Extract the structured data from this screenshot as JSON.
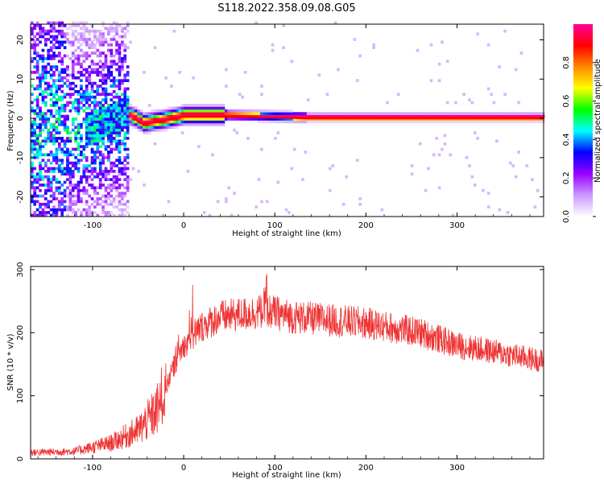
{
  "title": "S118.2022.358.09.08.G05",
  "chart_data": [
    {
      "type": "heatmap",
      "xlabel": "Height of straight line (km)",
      "ylabel": "Frequency (Hz)",
      "xlim": [
        -168,
        395
      ],
      "ylim": [
        -25,
        24
      ],
      "xticks": [
        -100,
        0,
        100,
        200,
        300
      ],
      "yticks": [
        -20,
        -10,
        0,
        10,
        20
      ],
      "colorbar": {
        "label": "Normalized spectral amplitude",
        "range": [
          0.0,
          1.0
        ],
        "ticks": [
          0.0,
          0.2,
          0.4,
          0.6,
          0.8
        ],
        "tick_labels": [
          "0.0",
          "0.2",
          "0.4",
          "0.6",
          "0.8"
        ],
        "colors": [
          "#ffffff",
          "#cc99ff",
          "#9900ff",
          "#0000ff",
          "#00ffff",
          "#00ff00",
          "#ffff00",
          "#ff8800",
          "#ff0000",
          "#ff0099"
        ]
      },
      "ridge": [
        {
          "x": -100,
          "y": -3
        },
        {
          "x": -70,
          "y": 1
        },
        {
          "x": -55,
          "y": 0
        },
        {
          "x": -45,
          "y": -1.5
        },
        {
          "x": -20,
          "y": -0.5
        },
        {
          "x": 0,
          "y": 0.5
        },
        {
          "x": 45,
          "y": 0.5
        },
        {
          "x": 135,
          "y": 0
        },
        {
          "x": 395,
          "y": 0
        }
      ]
    },
    {
      "type": "line",
      "color": "#ee3333",
      "xlabel": "Height of straight line (km)",
      "ylabel": "SNR (10 * v/v)",
      "xlim": [
        -168,
        395
      ],
      "ylim": [
        0,
        305
      ],
      "xticks": [
        -100,
        0,
        100,
        200,
        300
      ],
      "yticks": [
        0,
        100,
        200,
        300
      ],
      "envelope": [
        {
          "x": -168,
          "y": 10
        },
        {
          "x": -120,
          "y": 12
        },
        {
          "x": -80,
          "y": 25
        },
        {
          "x": -50,
          "y": 45
        },
        {
          "x": -30,
          "y": 75
        },
        {
          "x": -20,
          "y": 110
        },
        {
          "x": -10,
          "y": 150
        },
        {
          "x": 0,
          "y": 180
        },
        {
          "x": 20,
          "y": 210
        },
        {
          "x": 40,
          "y": 225
        },
        {
          "x": 70,
          "y": 230
        },
        {
          "x": 90,
          "y": 235
        },
        {
          "x": 120,
          "y": 225
        },
        {
          "x": 200,
          "y": 215
        },
        {
          "x": 260,
          "y": 200
        },
        {
          "x": 300,
          "y": 180
        },
        {
          "x": 340,
          "y": 170
        },
        {
          "x": 395,
          "y": 155
        }
      ]
    }
  ]
}
